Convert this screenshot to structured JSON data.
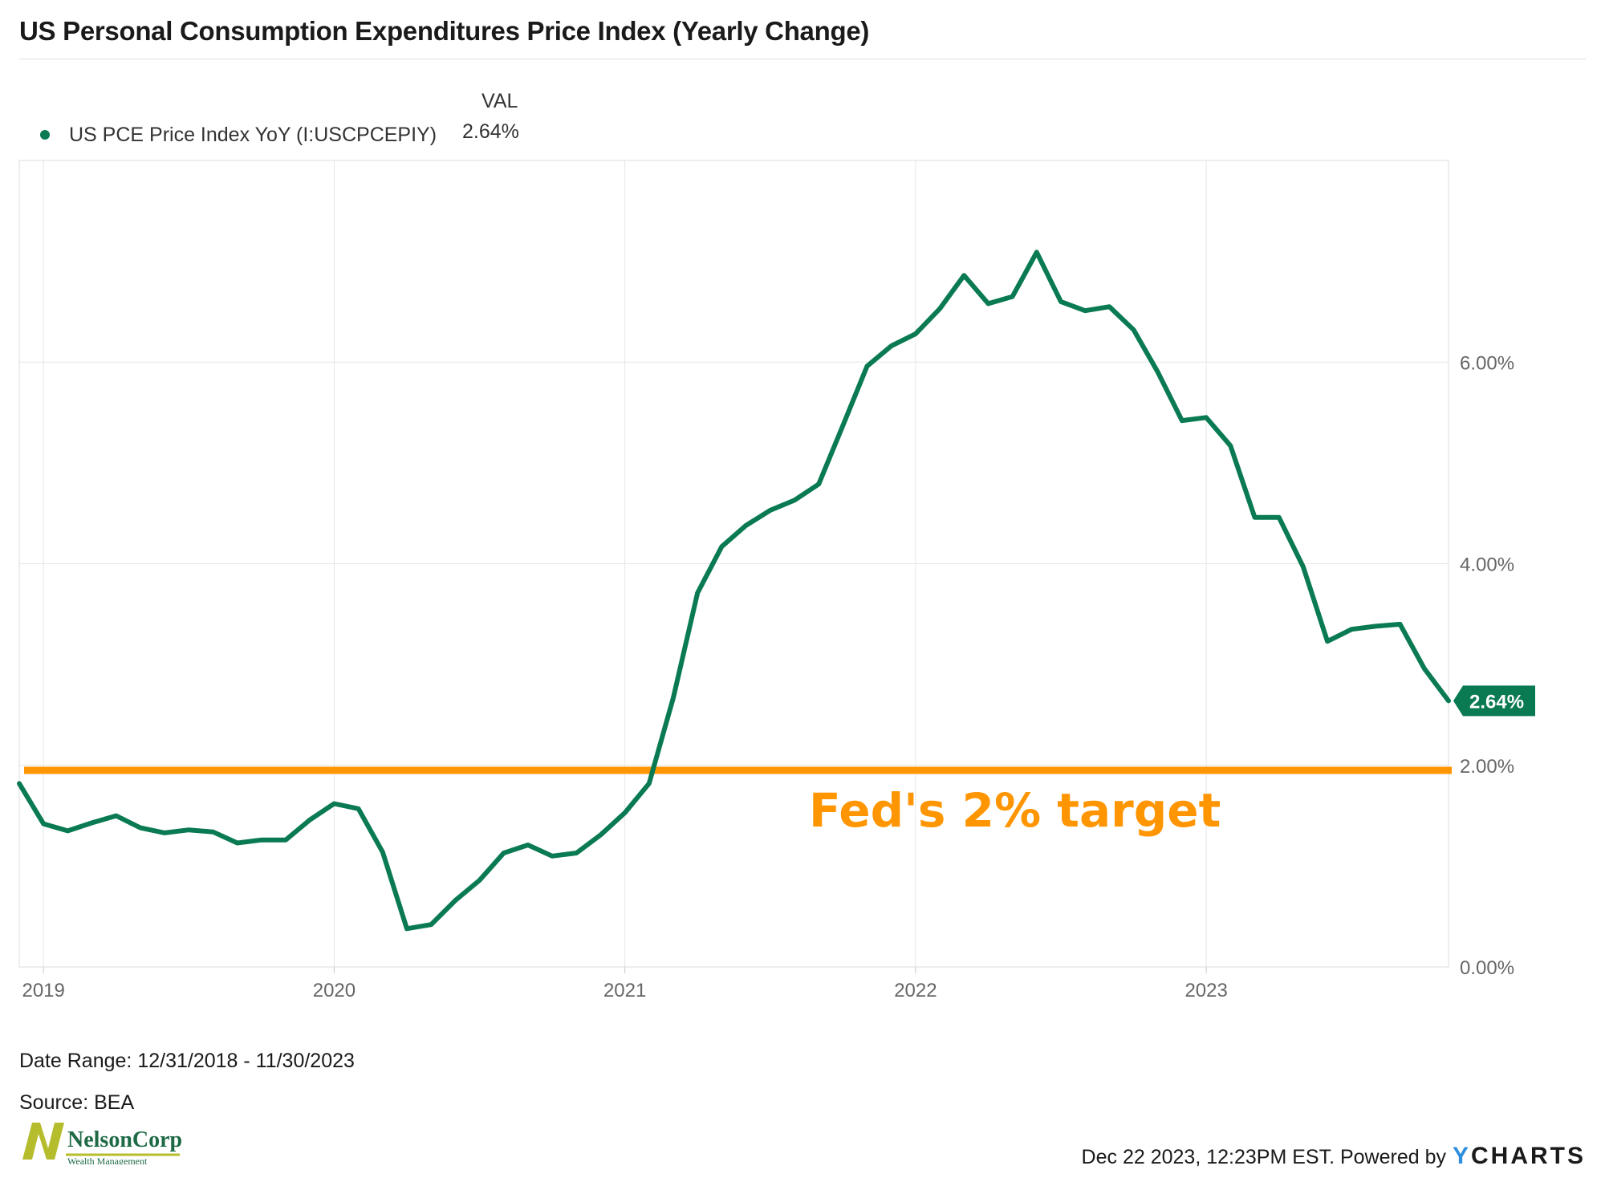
{
  "title": "US Personal Consumption Expenditures Price Index (Yearly Change)",
  "legend": {
    "header": "VAL",
    "series_name": "US PCE Price Index YoY (I:USCPCEPIY)",
    "series_value": "2.64%"
  },
  "colors": {
    "series": "#0a7a52",
    "target_line": "#ff9500",
    "grid": "#e6e6e6",
    "axis_text": "#666666"
  },
  "footer": {
    "date_range": "Date Range: 12/31/2018 - 11/30/2023",
    "source": "Source: BEA",
    "timestamp": "Dec 22 2023, 12:23PM EST. Powered by",
    "brand_y": "Y",
    "brand_rest": "CHARTS"
  },
  "logo": {
    "name": "NelsonCorp",
    "subtitle": "Wealth Management"
  },
  "chart_data": {
    "type": "line",
    "y_axis_position": "right",
    "ylim": [
      0,
      8
    ],
    "yticks": [
      0,
      2,
      4,
      6
    ],
    "ytick_labels": [
      "0.00%",
      "2.00%",
      "4.00%",
      "6.00%"
    ],
    "xticks": [
      "2019",
      "2020",
      "2021",
      "2022",
      "2023"
    ],
    "x_start": "2018-12",
    "grid": true,
    "last_value_label": "2.64%",
    "target": {
      "value": 1.95,
      "label": "Fed's 2% target"
    },
    "series": [
      {
        "name": "US PCE Price Index YoY (I:USCPCEPIY)",
        "x": [
          "2018-12",
          "2019-01",
          "2019-02",
          "2019-03",
          "2019-04",
          "2019-05",
          "2019-06",
          "2019-07",
          "2019-08",
          "2019-09",
          "2019-10",
          "2019-11",
          "2019-12",
          "2020-01",
          "2020-02",
          "2020-03",
          "2020-04",
          "2020-05",
          "2020-06",
          "2020-07",
          "2020-08",
          "2020-09",
          "2020-10",
          "2020-11",
          "2020-12",
          "2021-01",
          "2021-02",
          "2021-03",
          "2021-04",
          "2021-05",
          "2021-06",
          "2021-07",
          "2021-08",
          "2021-09",
          "2021-10",
          "2021-11",
          "2021-12",
          "2022-01",
          "2022-02",
          "2022-03",
          "2022-04",
          "2022-05",
          "2022-06",
          "2022-07",
          "2022-08",
          "2022-09",
          "2022-10",
          "2022-11",
          "2022-12",
          "2023-01",
          "2023-02",
          "2023-03",
          "2023-04",
          "2023-05",
          "2023-06",
          "2023-07",
          "2023-08",
          "2023-09",
          "2023-10",
          "2023-11"
        ],
        "values": [
          1.82,
          1.42,
          1.35,
          1.43,
          1.5,
          1.38,
          1.33,
          1.36,
          1.34,
          1.23,
          1.26,
          1.26,
          1.46,
          1.62,
          1.57,
          1.14,
          0.38,
          0.42,
          0.66,
          0.86,
          1.13,
          1.21,
          1.1,
          1.13,
          1.31,
          1.53,
          1.82,
          2.67,
          3.71,
          4.17,
          4.38,
          4.53,
          4.63,
          4.79,
          5.37,
          5.96,
          6.16,
          6.28,
          6.53,
          6.86,
          6.58,
          6.65,
          7.09,
          6.6,
          6.51,
          6.55,
          6.32,
          5.9,
          5.42,
          5.45,
          5.17,
          4.46,
          4.46,
          3.97,
          3.23,
          3.35,
          3.38,
          3.4,
          2.96,
          2.64
        ]
      }
    ]
  }
}
